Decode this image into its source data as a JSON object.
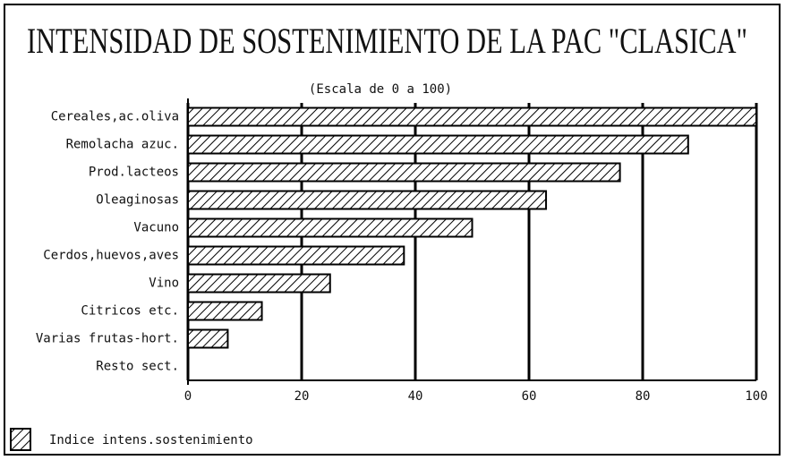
{
  "chart_data": {
    "type": "barh",
    "title": "INTENSIDAD DE SOSTENIMIENTO DE LA PAC \"CLASICA\"",
    "subtitle": "(Escala de 0 a 100)",
    "categories": [
      "Cereales,ac.oliva",
      "Remolacha azuc.",
      "Prod.lacteos",
      "Oleaginosas",
      "Vacuno",
      "Cerdos,huevos,aves",
      "Vino",
      "Citricos etc.",
      "Varias frutas-hort.",
      "Resto sect."
    ],
    "series": [
      {
        "name": "Indice intens.sostenimiento",
        "color": "#000000",
        "values": [
          100,
          88,
          76,
          63,
          50,
          38,
          25,
          13,
          7,
          0
        ]
      }
    ],
    "xlim": [
      0,
      100
    ],
    "xticks": [
      0,
      20,
      40,
      60,
      80,
      100
    ],
    "grid": true,
    "legend": "bottom-left"
  }
}
